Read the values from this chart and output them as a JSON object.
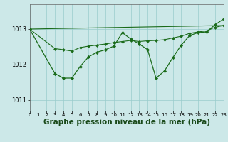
{
  "background_color": "#cce8e8",
  "grid_color": "#99cccc",
  "line_color": "#1a6b1a",
  "marker_color": "#1a6b1a",
  "xlabel": "Graphe pression niveau de la mer (hPa)",
  "xlabel_fontsize": 7.5,
  "ylim": [
    1010.7,
    1013.7
  ],
  "xlim": [
    0,
    23
  ],
  "yticks": [
    1011,
    1012,
    1013
  ],
  "xticks": [
    0,
    1,
    2,
    3,
    4,
    5,
    6,
    7,
    8,
    9,
    10,
    11,
    12,
    13,
    14,
    15,
    16,
    17,
    18,
    19,
    20,
    21,
    22,
    23
  ],
  "series": [
    {
      "x": [
        0,
        23
      ],
      "y": [
        1013.0,
        1013.1
      ],
      "lw": 0.8,
      "marker": null
    },
    {
      "x": [
        0,
        3,
        4,
        5,
        6,
        7,
        8,
        9,
        10,
        11,
        12,
        13,
        14,
        15,
        16,
        17,
        18,
        19,
        20,
        21,
        22,
        23
      ],
      "y": [
        1013.0,
        1012.45,
        1012.42,
        1012.38,
        1012.48,
        1012.52,
        1012.55,
        1012.58,
        1012.62,
        1012.65,
        1012.68,
        1012.65,
        1012.67,
        1012.68,
        1012.7,
        1012.75,
        1012.8,
        1012.88,
        1012.92,
        1012.95,
        1013.05,
        1013.1
      ],
      "lw": 0.8,
      "marker": null
    },
    {
      "x": [
        0,
        3,
        4,
        5,
        6,
        7,
        8,
        9,
        10,
        11,
        12,
        13,
        14,
        15,
        16,
        17,
        18,
        19,
        20,
        21,
        22,
        23
      ],
      "y": [
        1013.0,
        1011.75,
        1011.62,
        1011.62,
        1011.95,
        1012.22,
        1012.35,
        1012.42,
        1012.52,
        1012.9,
        1012.72,
        1012.58,
        1012.42,
        1011.62,
        1011.82,
        1012.2,
        1012.55,
        1012.82,
        1012.9,
        1012.92,
        1013.12,
        1013.28
      ],
      "lw": 0.9,
      "marker": "D"
    }
  ]
}
